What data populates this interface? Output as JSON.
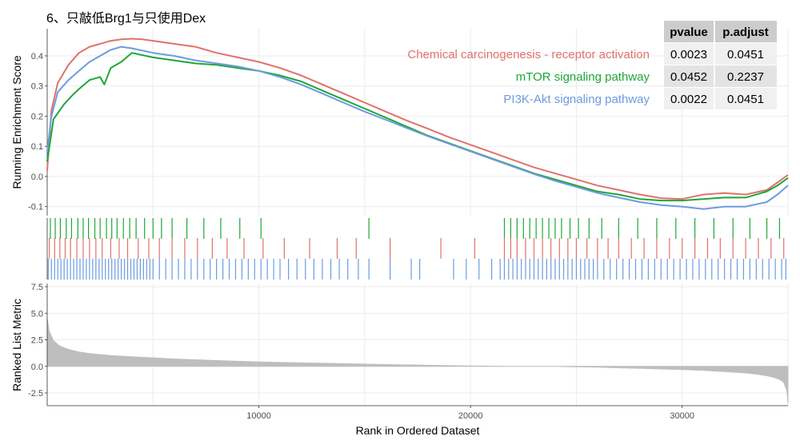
{
  "title": "6、只敲低Brg1与只使用Dex",
  "colors": {
    "chemical": "#e0726c",
    "mtor": "#1fa637",
    "pi3k": "#6c9be0",
    "metric": "#bebebe",
    "grid": "#ebebeb",
    "table_head_bg": "#cccccc",
    "table_row_odd": "#f0f0f0",
    "table_row_even": "#e3e3e3"
  },
  "chart_data": [
    {
      "type": "line",
      "panel": "running-enrichment-score",
      "ylabel": "Running Enrichment Score",
      "xlim": [
        0,
        35000
      ],
      "ylim": [
        -0.13,
        0.49
      ],
      "y_ticks": [
        -0.1,
        0.0,
        0.1,
        0.2,
        0.3,
        0.4
      ],
      "y_tick_labels": [
        "-0.1",
        "0.0",
        "0.1",
        "0.2",
        "0.3",
        "0.4"
      ],
      "grid": true,
      "series": [
        {
          "name": "Chemical carcinogenesis - receptor activation",
          "color_key": "chemical",
          "x": [
            0,
            200,
            500,
            1000,
            1500,
            2000,
            2500,
            3000,
            3500,
            4000,
            4500,
            5000,
            6000,
            7000,
            8000,
            9000,
            10000,
            11000,
            12000,
            13000,
            14000,
            15000,
            16000,
            17000,
            18000,
            19000,
            20000,
            21000,
            22000,
            23000,
            24000,
            25000,
            26000,
            27000,
            28000,
            29000,
            30000,
            31000,
            32000,
            33000,
            34000,
            34500,
            35000
          ],
          "y": [
            0.02,
            0.22,
            0.31,
            0.37,
            0.41,
            0.43,
            0.44,
            0.45,
            0.455,
            0.457,
            0.455,
            0.45,
            0.44,
            0.43,
            0.41,
            0.395,
            0.38,
            0.36,
            0.335,
            0.305,
            0.275,
            0.245,
            0.215,
            0.185,
            0.158,
            0.13,
            0.105,
            0.08,
            0.055,
            0.03,
            0.01,
            -0.01,
            -0.03,
            -0.045,
            -0.06,
            -0.072,
            -0.075,
            -0.06,
            -0.055,
            -0.06,
            -0.045,
            -0.02,
            0.005
          ]
        },
        {
          "name": "mTOR signaling pathway",
          "color_key": "mtor",
          "x": [
            0,
            300,
            800,
            1200,
            1500,
            2000,
            2500,
            2700,
            3000,
            3500,
            4000,
            5000,
            6000,
            7000,
            8000,
            9000,
            10000,
            11000,
            12000,
            13000,
            14000,
            15000,
            16000,
            17000,
            18000,
            19000,
            20000,
            21000,
            22000,
            23000,
            24000,
            25000,
            26000,
            27000,
            28000,
            29000,
            30000,
            31000,
            32000,
            33000,
            34000,
            34500,
            35000
          ],
          "y": [
            0.05,
            0.19,
            0.24,
            0.27,
            0.29,
            0.32,
            0.33,
            0.305,
            0.36,
            0.38,
            0.41,
            0.395,
            0.385,
            0.375,
            0.37,
            0.36,
            0.35,
            0.335,
            0.315,
            0.285,
            0.255,
            0.225,
            0.195,
            0.165,
            0.135,
            0.11,
            0.085,
            0.06,
            0.035,
            0.01,
            -0.01,
            -0.03,
            -0.05,
            -0.06,
            -0.075,
            -0.08,
            -0.08,
            -0.075,
            -0.07,
            -0.07,
            -0.05,
            -0.03,
            -0.005
          ]
        },
        {
          "name": "PI3K-Akt signaling pathway",
          "color_key": "pi3k",
          "x": [
            0,
            200,
            500,
            1000,
            1500,
            2000,
            2500,
            3000,
            3500,
            4000,
            5000,
            6000,
            7000,
            8000,
            9000,
            10000,
            11000,
            12000,
            13000,
            14000,
            15000,
            16000,
            17000,
            18000,
            19000,
            20000,
            21000,
            22000,
            23000,
            24000,
            25000,
            26000,
            27000,
            28000,
            29000,
            30000,
            31000,
            32000,
            33000,
            34000,
            34500,
            35000
          ],
          "y": [
            0.08,
            0.2,
            0.28,
            0.32,
            0.35,
            0.38,
            0.4,
            0.42,
            0.43,
            0.425,
            0.41,
            0.4,
            0.385,
            0.375,
            0.365,
            0.35,
            0.33,
            0.305,
            0.275,
            0.245,
            0.215,
            0.188,
            0.16,
            0.133,
            0.108,
            0.083,
            0.058,
            0.033,
            0.008,
            -0.015,
            -0.035,
            -0.055,
            -0.07,
            -0.085,
            -0.095,
            -0.1,
            -0.108,
            -0.1,
            -0.1,
            -0.085,
            -0.06,
            -0.03
          ]
        }
      ]
    },
    {
      "type": "bar",
      "panel": "gene-hit-rugs",
      "xlim": [
        0,
        35000
      ],
      "series": [
        {
          "name": "mTOR signaling pathway",
          "color_key": "mtor",
          "positions": [
            150,
            380,
            620,
            900,
            1150,
            1450,
            1700,
            1950,
            2250,
            2500,
            2800,
            3050,
            3300,
            3600,
            3900,
            4200,
            4600,
            5000,
            5400,
            5900,
            6600,
            7400,
            8200,
            9100,
            10100,
            15200,
            21600,
            21900,
            22200,
            22500,
            22800,
            23100,
            23400,
            23700,
            24000,
            24300,
            24700,
            25100,
            25600,
            26200,
            27000,
            27900,
            28800,
            29700,
            30600,
            31500,
            32400,
            33200,
            34000,
            34600
          ]
        },
        {
          "name": "Chemical carcinogenesis - receptor activation",
          "color_key": "chemical",
          "positions": [
            100,
            350,
            600,
            850,
            1100,
            1400,
            1700,
            2000,
            2300,
            2600,
            3000,
            3400,
            3800,
            4300,
            4800,
            5300,
            5900,
            6500,
            7100,
            7800,
            8500,
            9300,
            10200,
            11200,
            12400,
            13700,
            14600,
            16200,
            18600,
            20200,
            21600,
            21900,
            22200,
            22600,
            23000,
            23400,
            23800,
            24200,
            24600,
            25000,
            25500,
            26000,
            26500,
            27000,
            27600,
            28200,
            28800,
            29400,
            30000,
            30600,
            31200,
            31800,
            32400,
            33000,
            33600,
            34200,
            34800
          ]
        },
        {
          "name": "PI3K-Akt signaling pathway",
          "color_key": "pi3k",
          "positions": [
            50,
            200,
            350,
            500,
            650,
            800,
            950,
            1100,
            1250,
            1400,
            1550,
            1700,
            1850,
            2000,
            2150,
            2300,
            2450,
            2600,
            2750,
            2900,
            3050,
            3200,
            3350,
            3500,
            3650,
            3800,
            3950,
            4100,
            4250,
            4400,
            4550,
            4700,
            4850,
            5000,
            5300,
            5600,
            5900,
            6200,
            6500,
            6800,
            7100,
            7400,
            7700,
            8000,
            8300,
            8600,
            8900,
            9200,
            9500,
            9800,
            10100,
            10400,
            10700,
            11000,
            11400,
            11800,
            12200,
            12600,
            13000,
            13400,
            13800,
            14200,
            14700,
            15200,
            16200,
            17200,
            17600,
            19200,
            19800,
            20400,
            21000,
            21400,
            21600,
            21800,
            22000,
            22200,
            22400,
            22600,
            22800,
            23000,
            23200,
            23400,
            23600,
            23800,
            24000,
            24200,
            24400,
            24600,
            24800,
            25000,
            25200,
            25400,
            25600,
            25800,
            26000,
            26300,
            26600,
            26900,
            27200,
            27500,
            27800,
            28100,
            28400,
            28700,
            29000,
            29300,
            29600,
            29900,
            30200,
            30500,
            30800,
            31100,
            31400,
            31700,
            32000,
            32300,
            32600,
            32900,
            33200,
            33500,
            33800,
            34100,
            34400,
            34700,
            34900
          ]
        }
      ]
    },
    {
      "type": "area",
      "panel": "ranked-list-metric",
      "xlabel": "Rank in Ordered Dataset",
      "ylabel": "Ranked List Metric",
      "xlim": [
        0,
        35000
      ],
      "ylim": [
        -3.7,
        7.8
      ],
      "y_ticks": [
        -2.5,
        0.0,
        2.5,
        5.0,
        7.5
      ],
      "y_tick_labels": [
        "-2.5",
        "0.0",
        "2.5",
        "5.0",
        "7.5"
      ],
      "x_ticks": [
        10000,
        20000,
        30000
      ],
      "x_tick_labels": [
        "10000",
        "20000",
        "30000"
      ],
      "grid": true,
      "x": [
        0,
        100,
        300,
        600,
        1000,
        1500,
        2000,
        3000,
        4000,
        5000,
        6000,
        7000,
        8000,
        9000,
        10000,
        12000,
        14000,
        16000,
        18000,
        20000,
        21500,
        21600,
        24200,
        24300,
        26000,
        28000,
        30000,
        31000,
        32000,
        33000,
        33500,
        34000,
        34300,
        34600,
        34800,
        34950,
        35000
      ],
      "y": [
        4.5,
        3.3,
        2.4,
        1.9,
        1.6,
        1.35,
        1.2,
        1.02,
        0.9,
        0.8,
        0.7,
        0.62,
        0.55,
        0.48,
        0.42,
        0.33,
        0.25,
        0.17,
        0.1,
        0.04,
        0.01,
        0.0,
        0.0,
        -0.02,
        -0.08,
        -0.18,
        -0.3,
        -0.38,
        -0.48,
        -0.62,
        -0.72,
        -0.88,
        -1.02,
        -1.22,
        -1.5,
        -2.3,
        -3.5
      ]
    }
  ],
  "stats_table": {
    "headers": [
      "pvalue",
      "p.adjust"
    ],
    "rows": [
      {
        "label": "Chemical carcinogenesis - receptor activation",
        "color_key": "chemical",
        "pvalue": "0.0023",
        "padjust": "0.0451"
      },
      {
        "label": "mTOR signaling pathway",
        "color_key": "mtor",
        "pvalue": "0.0452",
        "padjust": "0.2237"
      },
      {
        "label": "PI3K-Akt signaling pathway",
        "color_key": "pi3k",
        "pvalue": "0.0022",
        "padjust": "0.0451"
      }
    ]
  }
}
